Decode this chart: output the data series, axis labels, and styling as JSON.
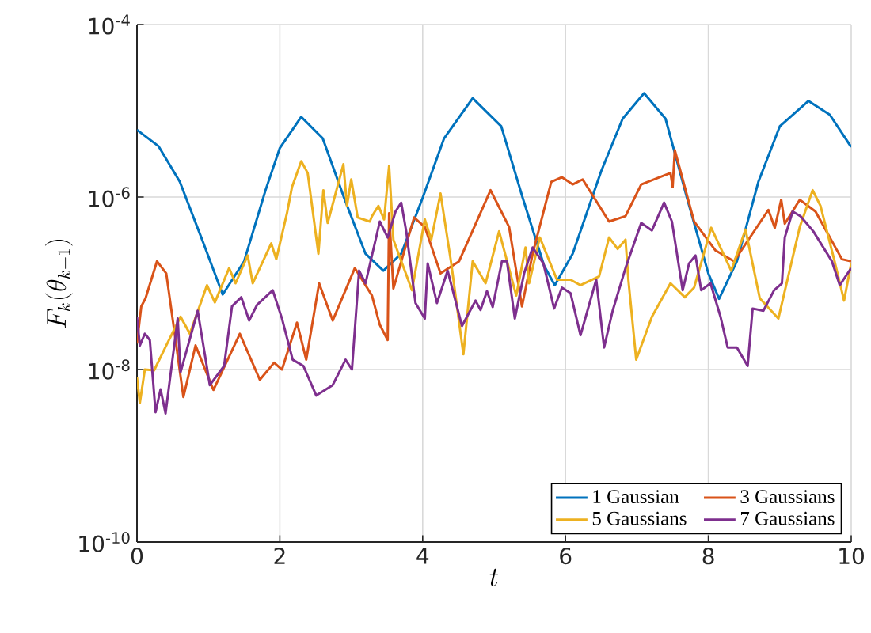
{
  "chart_data": {
    "type": "line",
    "xlabel": "t",
    "ylabel": "F_k(\\theta_{k+1})",
    "log": "y",
    "grid": true,
    "legend": "bottom right",
    "xlim": [
      0,
      10
    ],
    "ylim": [
      1e-10,
      0.0001
    ],
    "xticks": [
      0,
      2,
      4,
      6,
      8,
      10
    ],
    "yticks": [
      {
        "value": 1e-10,
        "label": "10$^{-10}$"
      },
      {
        "value": 1e-08,
        "label": "10$^{-8}$"
      },
      {
        "value": 1e-06,
        "label": "10$^{-6}$"
      },
      {
        "value": 0.0001,
        "label": "10$^{-4}$"
      }
    ],
    "series": [
      {
        "name": "1 Gaussian",
        "color": "#0072bd",
        "x": [
          0,
          0.3,
          0.6,
          0.9,
          1.2,
          1.5,
          1.8,
          2.0,
          2.3,
          2.6,
          2.9,
          3.2,
          3.45,
          3.7,
          4.0,
          4.3,
          4.7,
          5.1,
          5.4,
          5.7,
          5.85,
          6.1,
          6.5,
          6.8,
          7.1,
          7.4,
          7.7,
          8.0,
          8.15,
          8.4,
          8.7,
          9.0,
          9.4,
          9.7,
          10
        ],
        "values": [
          6e-06,
          3.9e-06,
          1.5e-06,
          3.4e-07,
          7.4e-08,
          1.8e-07,
          1.2e-06,
          3.7e-06,
          8.5e-06,
          4.8e-06,
          9.8e-07,
          2.2e-07,
          1.4e-07,
          2.2e-07,
          9.8e-07,
          4.8e-06,
          1.4e-05,
          6.6e-06,
          9.8e-07,
          1.6e-07,
          9.5e-08,
          2.2e-07,
          2e-06,
          8.1e-06,
          1.6e-05,
          8.1e-06,
          9.8e-07,
          1.3e-07,
          6.6e-08,
          1.8e-07,
          1.5e-06,
          6.6e-06,
          1.3e-05,
          9e-06,
          3.8e-06
        ]
      },
      {
        "name": "3 Gaussians",
        "color": "#d95319",
        "x": [
          0,
          0.06,
          0.12,
          0.28,
          0.41,
          0.52,
          0.65,
          0.82,
          1.07,
          1.44,
          1.72,
          1.92,
          2.03,
          2.24,
          2.37,
          2.55,
          2.74,
          3.05,
          3.29,
          3.4,
          3.51,
          3.53,
          3.59,
          3.88,
          4.03,
          4.25,
          4.51,
          4.95,
          5.21,
          5.39,
          5.54,
          5.8,
          5.95,
          6.1,
          6.24,
          6.61,
          6.84,
          7.06,
          7.32,
          7.47,
          7.5,
          7.53,
          7.8,
          8.1,
          8.36,
          8.84,
          8.93,
          9.02,
          9.07,
          9.28,
          9.5,
          9.87,
          10
        ],
        "values": [
          2e-08,
          5.4e-08,
          6.7e-08,
          1.8e-07,
          1.3e-07,
          2.9e-08,
          4.8e-09,
          1.9e-08,
          5.8e-09,
          2.6e-08,
          7.6e-09,
          1.2e-08,
          1e-08,
          3.5e-08,
          1.3e-08,
          1e-07,
          3.7e-08,
          1.5e-07,
          7.2e-08,
          3.3e-08,
          2.2e-08,
          6.5e-07,
          8.7e-08,
          5.8e-07,
          4.5e-07,
          1.3e-07,
          1.8e-07,
          1.2e-06,
          4.5e-07,
          5.4e-08,
          2.2e-07,
          1.5e-06,
          1.7e-06,
          1.4e-06,
          1.6e-06,
          5.2e-07,
          6e-07,
          1.4e-06,
          1.7e-06,
          1.9e-06,
          1.3e-06,
          3.5e-06,
          5.2e-07,
          2.4e-07,
          1.8e-07,
          7.1e-07,
          4.4e-07,
          9.3e-07,
          4.9e-07,
          9.3e-07,
          6.8e-07,
          1.9e-07,
          1.8e-07
        ]
      },
      {
        "name": "5 Gaussians",
        "color": "#edb120",
        "x": [
          0,
          0.04,
          0.11,
          0.24,
          0.41,
          0.61,
          0.74,
          0.98,
          1.09,
          1.29,
          1.38,
          1.55,
          1.62,
          1.88,
          1.95,
          2.1,
          2.17,
          2.3,
          2.39,
          2.54,
          2.61,
          2.67,
          2.89,
          2.94,
          3.0,
          3.09,
          3.26,
          3.29,
          3.38,
          3.46,
          3.53,
          3.59,
          3.85,
          4.03,
          4.12,
          4.25,
          4.4,
          4.57,
          4.7,
          4.88,
          5.07,
          5.31,
          5.44,
          5.49,
          5.64,
          5.88,
          6.07,
          6.21,
          6.47,
          6.61,
          6.73,
          6.84,
          6.88,
          6.99,
          7.21,
          7.47,
          7.67,
          7.8,
          8.04,
          8.32,
          8.52,
          8.72,
          8.98,
          9.28,
          9.46,
          9.57,
          9.76,
          9.9,
          10
        ],
        "values": [
          8.1e-09,
          4.1e-09,
          1e-08,
          9.8e-09,
          1.9e-08,
          4.1e-08,
          2.6e-08,
          9.5e-08,
          6e-08,
          1.5e-07,
          1e-07,
          2.1e-07,
          1e-07,
          2.9e-07,
          1.9e-07,
          6.5e-07,
          1.3e-06,
          2.6e-06,
          1.9e-06,
          2.2e-07,
          1.2e-06,
          5e-07,
          2.4e-06,
          7.9e-07,
          1.6e-06,
          5.8e-07,
          5.2e-07,
          6e-07,
          7.9e-07,
          5.5e-07,
          2.3e-06,
          3.2e-07,
          8.3e-08,
          5.5e-07,
          3.2e-07,
          1.1e-06,
          1.7e-07,
          1.5e-08,
          1.8e-07,
          1e-07,
          4e-07,
          7.2e-08,
          2.6e-07,
          1e-07,
          3.4e-07,
          1.1e-07,
          1.1e-07,
          9.5e-08,
          1.2e-07,
          3.4e-07,
          2.5e-07,
          3.2e-07,
          1.1e-07,
          1.3e-08,
          4.1e-08,
          1e-07,
          6.9e-08,
          8.9e-08,
          4.4e-07,
          1.4e-07,
          4.2e-07,
          6.7e-08,
          3.9e-08,
          4.5e-07,
          1.2e-06,
          7.9e-07,
          1.9e-07,
          6.3e-08,
          1.7e-07
        ]
      },
      {
        "name": "7 Gaussians",
        "color": "#7e2f8e",
        "x": [
          0,
          0.04,
          0.11,
          0.18,
          0.26,
          0.33,
          0.4,
          0.57,
          0.61,
          0.85,
          1.02,
          1.22,
          1.33,
          1.46,
          1.57,
          1.68,
          1.9,
          2.03,
          2.18,
          2.33,
          2.51,
          2.74,
          2.92,
          3.01,
          3.11,
          3.2,
          3.4,
          3.51,
          3.62,
          3.7,
          3.77,
          3.9,
          4.03,
          4.07,
          4.2,
          4.35,
          4.55,
          4.74,
          4.81,
          4.9,
          4.98,
          5.11,
          5.18,
          5.29,
          5.42,
          5.54,
          5.69,
          5.84,
          5.95,
          6.07,
          6.21,
          6.43,
          6.54,
          6.66,
          6.84,
          7.06,
          7.21,
          7.38,
          7.49,
          7.64,
          7.73,
          7.82,
          7.9,
          8.03,
          8.17,
          8.27,
          8.4,
          8.55,
          8.62,
          8.77,
          8.92,
          9.03,
          9.07,
          9.18,
          9.29,
          9.47,
          9.73,
          9.84,
          10
        ],
        "values": [
          4.1e-08,
          1.9e-08,
          2.6e-08,
          2.2e-08,
          3.2e-09,
          5.9e-09,
          3.1e-09,
          3.9e-08,
          9.3e-09,
          4.8e-08,
          6.6e-09,
          1.1e-08,
          5.4e-08,
          6.9e-08,
          3.7e-08,
          5.6e-08,
          8.3e-08,
          3.9e-08,
          1.3e-08,
          1.1e-08,
          5e-09,
          6.6e-09,
          1.3e-08,
          1e-08,
          1.4e-07,
          1e-07,
          5.2e-07,
          3.4e-07,
          6.8e-07,
          8.6e-07,
          4e-07,
          5.9e-08,
          3.9e-08,
          1.7e-07,
          5.9e-08,
          1.4e-07,
          3.2e-08,
          6.3e-08,
          4.9e-08,
          8.1e-08,
          5.3e-08,
          1.8e-07,
          1.8e-07,
          3.9e-08,
          1.3e-07,
          2.6e-07,
          1.7e-07,
          5.1e-08,
          8.9e-08,
          7.7e-08,
          2.5e-08,
          1.1e-07,
          1.8e-08,
          4.8e-08,
          1.5e-07,
          5e-07,
          4.1e-07,
          8.6e-07,
          5.2e-07,
          8.3e-08,
          1.7e-07,
          2.1e-07,
          8.3e-08,
          1e-07,
          4.1e-08,
          1.8e-08,
          1.8e-08,
          1.1e-08,
          5.1e-08,
          4.8e-08,
          8.3e-08,
          1e-07,
          3.4e-07,
          6.8e-07,
          6e-07,
          4e-07,
          1.8e-07,
          9.5e-08,
          1.5e-07
        ]
      }
    ]
  }
}
